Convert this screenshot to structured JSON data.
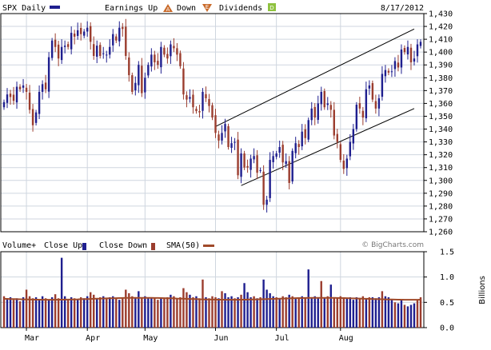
{
  "header": {
    "symbol": "SPX Daily",
    "earnings_label": "Earnings Up",
    "down_label": "Down",
    "dividends_label": "Dividends",
    "earnings_icon": "A",
    "down_icon": "E",
    "dividends_icon": "D",
    "date": "8/17/2012"
  },
  "volume_header": {
    "volume_label": "Volume+",
    "close_up_label": "Close Up",
    "close_down_label": "Close Down",
    "sma_label": "SMA(50)",
    "source": "© BigCharts.com",
    "unit": "Billions"
  },
  "colors": {
    "up": "#1f1f8f",
    "down": "#9b3d2e",
    "sma": "#a04a2a",
    "grid": "#cfd6df",
    "dividend": "#8fc23f"
  },
  "chart_data": [
    {
      "type": "candlestick",
      "ylim": [
        1260,
        1430
      ],
      "yticks": [
        "1,260",
        "1,270",
        "1,280",
        "1,290",
        "1,300",
        "1,310",
        "1,320",
        "1,330",
        "1,340",
        "1,350",
        "1,360",
        "1,370",
        "1,380",
        "1,390",
        "1,400",
        "1,410",
        "1,420",
        "1,430"
      ],
      "months": [
        "Mar",
        "Apr",
        "May",
        "Jun",
        "Jul",
        "Aug"
      ],
      "month_positions": [
        7,
        26,
        44,
        66,
        85,
        105
      ],
      "closes": [
        1361,
        1367,
        1365,
        1362,
        1373,
        1371,
        1374,
        1369,
        1355,
        1343,
        1353,
        1369,
        1375,
        1371,
        1396,
        1409,
        1404,
        1395,
        1404,
        1405,
        1404,
        1415,
        1412,
        1417,
        1414,
        1416,
        1419,
        1408,
        1397,
        1405,
        1397,
        1399,
        1398,
        1404,
        1414,
        1409,
        1419,
        1418,
        1397,
        1382,
        1369,
        1376,
        1390,
        1368,
        1380,
        1390,
        1398,
        1392,
        1390,
        1404,
        1398,
        1395,
        1406,
        1403,
        1398,
        1389,
        1367,
        1363,
        1365,
        1357,
        1354,
        1353,
        1369,
        1364,
        1358,
        1349,
        1337,
        1331,
        1337,
        1344,
        1326,
        1329,
        1330,
        1304,
        1321,
        1310,
        1310,
        1317,
        1319,
        1306,
        1308,
        1281,
        1285,
        1316,
        1319,
        1321,
        1326,
        1314,
        1315,
        1298,
        1323,
        1329,
        1326,
        1338,
        1333,
        1347,
        1356,
        1349,
        1360,
        1369,
        1357,
        1360,
        1355,
        1335,
        1330,
        1316,
        1309,
        1317,
        1330,
        1340,
        1359,
        1356,
        1349,
        1371,
        1374,
        1363,
        1356,
        1364,
        1383,
        1386,
        1384,
        1385,
        1393,
        1388,
        1402,
        1400,
        1404,
        1392,
        1395,
        1406,
        1408
      ],
      "trend_lines": [
        {
          "from": [
            66,
            1342
          ],
          "to": [
            128,
            1418
          ]
        },
        {
          "from": [
            74,
            1296
          ],
          "to": [
            128,
            1356
          ]
        }
      ]
    },
    {
      "type": "bar",
      "ylim": [
        0,
        1.5
      ],
      "yticks": [
        "0.0",
        "0.5",
        "1.0",
        "1.5"
      ],
      "sma_level": 0.57,
      "volumes": [
        0.62,
        0.58,
        0.6,
        0.55,
        0.58,
        0.52,
        0.6,
        0.75,
        0.62,
        0.58,
        0.6,
        0.55,
        0.62,
        0.58,
        0.55,
        0.6,
        0.66,
        0.58,
        1.38,
        0.62,
        0.55,
        0.6,
        0.58,
        0.55,
        0.6,
        0.58,
        0.62,
        0.7,
        0.65,
        0.58,
        0.6,
        0.62,
        0.58,
        0.6,
        0.62,
        0.58,
        0.55,
        0.6,
        0.75,
        0.68,
        0.62,
        0.58,
        0.72,
        0.6,
        0.62,
        0.58,
        0.6,
        0.6,
        0.55,
        0.6,
        0.58,
        0.6,
        0.65,
        0.62,
        0.58,
        0.6,
        0.78,
        0.7,
        0.65,
        0.6,
        0.62,
        0.58,
        0.95,
        0.6,
        0.58,
        0.62,
        0.6,
        0.58,
        0.72,
        0.68,
        0.6,
        0.62,
        0.58,
        0.6,
        0.65,
        0.88,
        0.7,
        0.6,
        0.62,
        0.58,
        0.6,
        0.95,
        0.75,
        0.68,
        0.62,
        0.6,
        0.58,
        0.62,
        0.6,
        0.65,
        0.62,
        0.58,
        0.6,
        0.62,
        0.58,
        1.15,
        0.6,
        0.62,
        0.58,
        0.92,
        0.6,
        0.62,
        0.85,
        0.6,
        0.58,
        0.62,
        0.6,
        0.58,
        0.6,
        0.55,
        0.6,
        0.58,
        0.62,
        0.58,
        0.6,
        0.6,
        0.58,
        0.6,
        0.72,
        0.62,
        0.6,
        0.55,
        0.5,
        0.48,
        0.55,
        0.45,
        0.42,
        0.45,
        0.48,
        0.55,
        0.6
      ],
      "directions": "DUUDUDUDDDUUUDUUDDUUDUDUDUUDDUDUDUUDUDDDDUUDUUUDDUDDUDDDDDUDUDDUDDDUDUUUDUDUUUDUDUUUUDUDDUDUDUDUUUUDUDUDDDDUUUUDDUDUUUDUUUDUUDUUU"
    }
  ]
}
